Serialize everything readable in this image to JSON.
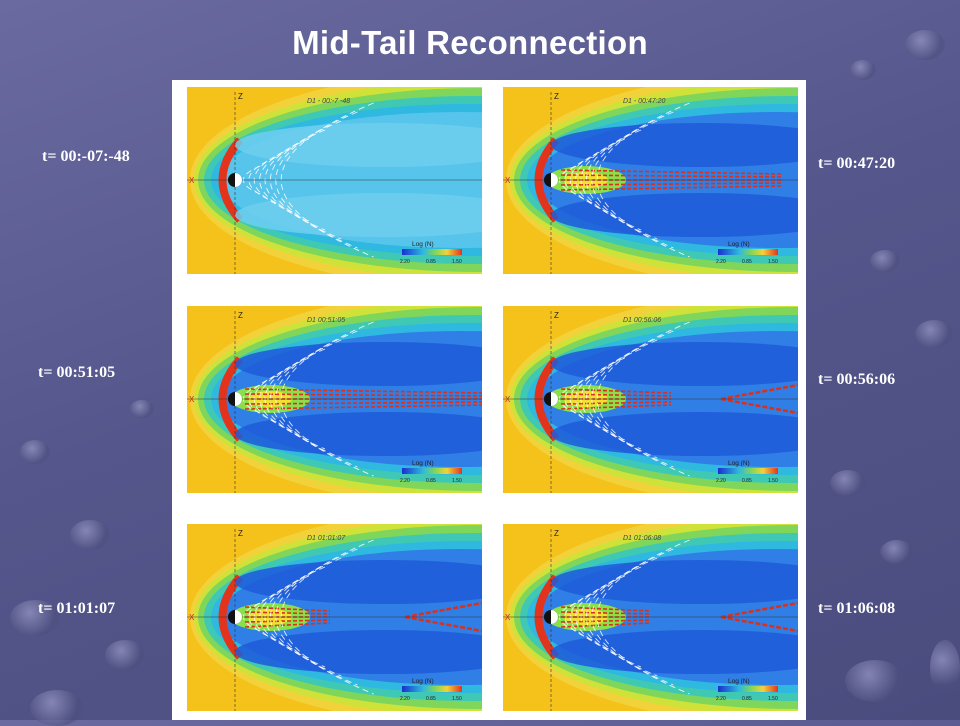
{
  "slide": {
    "title": "Mid-Tail Reconnection"
  },
  "panels": [
    {
      "time_label": "t= 00:-07:-48",
      "header": "D1 - 00:-7 -48",
      "colorbar_label": "Log (N)",
      "colorbar_ticks": [
        "2.20",
        "0.85",
        "1.50"
      ],
      "axis_x": "X",
      "axis_z": "Z"
    },
    {
      "time_label": "t= 00:47:20",
      "header": "D1 - 00:47:20",
      "colorbar_label": "Log (N)",
      "colorbar_ticks": [
        "2.20",
        "0.85",
        "1.50"
      ],
      "axis_x": "X",
      "axis_z": "Z"
    },
    {
      "time_label": "t= 00:51:05",
      "header": "D1 00:51:05",
      "colorbar_label": "Log (N)",
      "colorbar_ticks": [
        "2.20",
        "0.85",
        "1.50"
      ],
      "axis_x": "X",
      "axis_z": "Z"
    },
    {
      "time_label": "t= 00:56:06",
      "header": "D1 00:56:06",
      "colorbar_label": "Log (N)",
      "colorbar_ticks": [
        "2.20",
        "0.85",
        "1.50"
      ],
      "axis_x": "X",
      "axis_z": "Z"
    },
    {
      "time_label": "t= 01:01:07",
      "header": "D1 01:01:07",
      "colorbar_label": "Log (N)",
      "colorbar_ticks": [
        "2.20",
        "0.85",
        "1.50"
      ],
      "axis_x": "X",
      "axis_z": "Z"
    },
    {
      "time_label": "t= 01:06:08",
      "header": "D1 01:06:08",
      "colorbar_label": "Log (N)",
      "colorbar_ticks": [
        "2.20",
        "0.85",
        "1.50"
      ],
      "axis_x": "X",
      "axis_z": "Z"
    }
  ]
}
